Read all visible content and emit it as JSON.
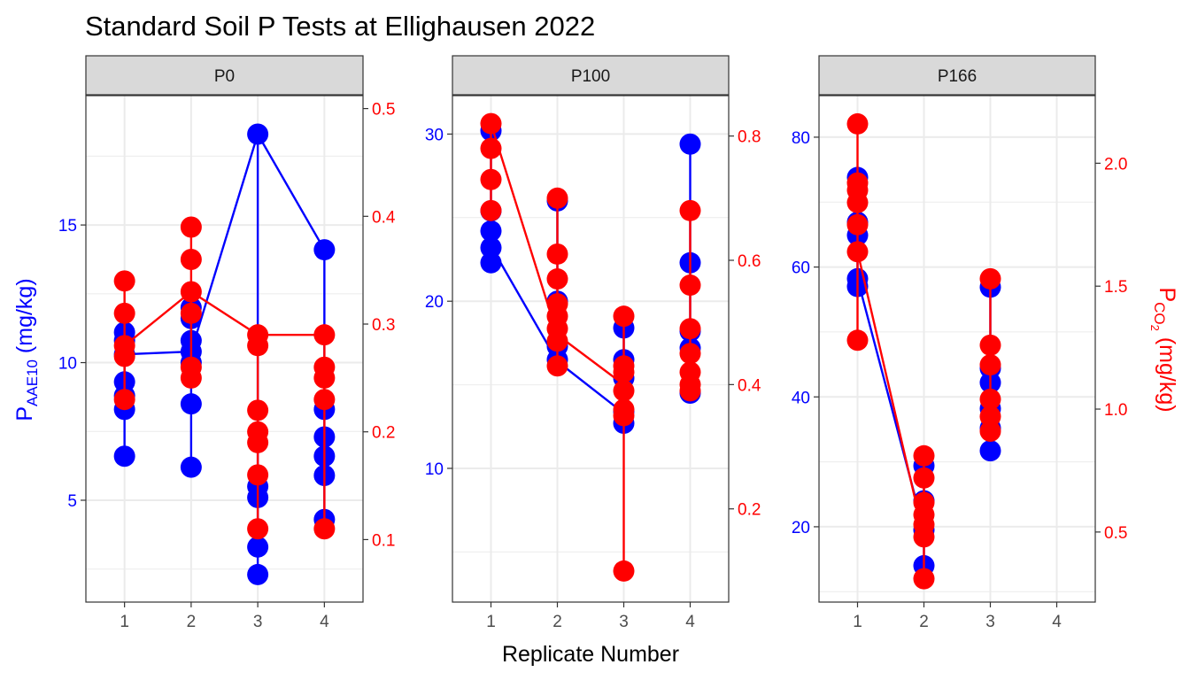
{
  "chart_data": {
    "type": "line",
    "title": "Standard Soil P Tests at Ellighausen 2022",
    "xlabel": "Replicate Number",
    "ylabel_left": {
      "main": "P",
      "sub": "AAE10",
      "unit": " (mg/kg)"
    },
    "ylabel_right": {
      "main": "P",
      "sub": "CO",
      "subsub": "2",
      "unit": " (mg/kg)"
    },
    "colors": {
      "aae10": "#0000ff",
      "co2": "#ff0000",
      "strip_bg": "#d9d9d9",
      "grid": "#ebebeb"
    },
    "grid": true,
    "x_ticks": [
      "1",
      "2",
      "3",
      "4"
    ],
    "panels": [
      {
        "label": "P0",
        "left_axis": {
          "range": [
            1.3,
            19.7
          ],
          "ticks": [
            "5",
            "10",
            "15"
          ],
          "tick_values": [
            5,
            10,
            15
          ]
        },
        "right_axis": {
          "range": [
            0.042,
            0.512
          ],
          "ticks": [
            "0.1",
            "0.2",
            "0.3",
            "0.4",
            "0.5"
          ],
          "tick_values": [
            0.1,
            0.2,
            0.3,
            0.4,
            0.5
          ]
        },
        "aae10": {
          "points": [
            [
              1,
              6.6
            ],
            [
              1,
              8.3
            ],
            [
              1,
              8.8
            ],
            [
              1,
              9.3
            ],
            [
              1,
              10.3
            ],
            [
              1,
              10.8
            ],
            [
              1,
              11.1
            ],
            [
              2,
              6.2
            ],
            [
              2,
              8.5
            ],
            [
              2,
              10.0
            ],
            [
              2,
              10.4
            ],
            [
              2,
              10.8
            ],
            [
              2,
              11.6
            ],
            [
              2,
              12.0
            ],
            [
              3,
              2.3
            ],
            [
              3,
              3.3
            ],
            [
              3,
              5.1
            ],
            [
              3,
              5.5
            ],
            [
              3,
              18.3
            ],
            [
              4,
              4.3
            ],
            [
              4,
              5.9
            ],
            [
              4,
              6.6
            ],
            [
              4,
              7.3
            ],
            [
              4,
              8.3
            ],
            [
              4,
              14.1
            ]
          ],
          "means": [
            [
              1,
              10.3
            ],
            [
              2,
              10.4
            ],
            [
              3,
              18.3
            ],
            [
              4,
              14.1
            ]
          ]
        },
        "co2": {
          "points": [
            [
              1,
              0.23
            ],
            [
              1,
              0.27
            ],
            [
              1,
              0.28
            ],
            [
              1,
              0.31
            ],
            [
              1,
              0.34
            ],
            [
              2,
              0.25
            ],
            [
              2,
              0.26
            ],
            [
              2,
              0.31
            ],
            [
              2,
              0.33
            ],
            [
              2,
              0.36
            ],
            [
              2,
              0.39
            ],
            [
              3,
              0.11
            ],
            [
              3,
              0.16
            ],
            [
              3,
              0.19
            ],
            [
              3,
              0.2
            ],
            [
              3,
              0.22
            ],
            [
              3,
              0.28
            ],
            [
              3,
              0.29
            ],
            [
              4,
              0.11
            ],
            [
              4,
              0.23
            ],
            [
              4,
              0.25
            ],
            [
              4,
              0.26
            ],
            [
              4,
              0.29
            ]
          ],
          "means": [
            [
              1,
              0.28
            ],
            [
              2,
              0.33
            ],
            [
              3,
              0.29
            ],
            [
              4,
              0.29
            ]
          ]
        }
      },
      {
        "label": "P100",
        "left_axis": {
          "range": [
            2.0,
            32.3
          ],
          "ticks": [
            "10",
            "20",
            "30"
          ],
          "tick_values": [
            10,
            20,
            30
          ]
        },
        "right_axis": {
          "range": [
            0.05,
            0.865
          ],
          "ticks": [
            "0.2",
            "0.4",
            "0.6",
            "0.8"
          ],
          "tick_values": [
            0.2,
            0.4,
            0.6,
            0.8
          ]
        },
        "aae10": {
          "points": [
            [
              1,
              22.3
            ],
            [
              1,
              23.2
            ],
            [
              1,
              24.2
            ],
            [
              1,
              25.4
            ],
            [
              1,
              30.2
            ],
            [
              2,
              16.5
            ],
            [
              2,
              17.3
            ],
            [
              2,
              20.0
            ],
            [
              2,
              26.0
            ],
            [
              3,
              12.7
            ],
            [
              3,
              13.4
            ],
            [
              3,
              15.4
            ],
            [
              3,
              16.5
            ],
            [
              3,
              18.4
            ],
            [
              4,
              14.5
            ],
            [
              4,
              17.2
            ],
            [
              4,
              18.2
            ],
            [
              4,
              22.3
            ],
            [
              4,
              29.4
            ]
          ],
          "means": [
            [
              1,
              23.3
            ],
            [
              2,
              16.4
            ],
            [
              3,
              13.3
            ]
          ]
        },
        "co2": {
          "points": [
            [
              1,
              0.68
            ],
            [
              1,
              0.73
            ],
            [
              1,
              0.78
            ],
            [
              1,
              0.82
            ],
            [
              2,
              0.43
            ],
            [
              2,
              0.47
            ],
            [
              2,
              0.49
            ],
            [
              2,
              0.51
            ],
            [
              2,
              0.53
            ],
            [
              2,
              0.57
            ],
            [
              2,
              0.61
            ],
            [
              2,
              0.7
            ],
            [
              3,
              0.1
            ],
            [
              3,
              0.35
            ],
            [
              3,
              0.36
            ],
            [
              3,
              0.39
            ],
            [
              3,
              0.42
            ],
            [
              3,
              0.43
            ],
            [
              3,
              0.51
            ],
            [
              4,
              0.39
            ],
            [
              4,
              0.4
            ],
            [
              4,
              0.42
            ],
            [
              4,
              0.45
            ],
            [
              4,
              0.49
            ],
            [
              4,
              0.56
            ],
            [
              4,
              0.68
            ]
          ],
          "means": [
            [
              1,
              0.82
            ],
            [
              2,
              0.48
            ],
            [
              3,
              0.4
            ]
          ]
        }
      },
      {
        "label": "P166",
        "left_axis": {
          "range": [
            8.4,
            86.4
          ],
          "ticks": [
            "20",
            "40",
            "60",
            "80"
          ],
          "tick_values": [
            20,
            40,
            60,
            80
          ]
        },
        "right_axis": {
          "range": [
            0.215,
            2.275
          ],
          "ticks": [
            "0.5",
            "1.0",
            "1.5",
            "2.0"
          ],
          "tick_values": [
            0.5,
            1.0,
            1.5,
            2.0
          ]
        },
        "aae10": {
          "points": [
            [
              1,
              57.0
            ],
            [
              1,
              58.2
            ],
            [
              1,
              64.9
            ],
            [
              1,
              66.9
            ],
            [
              1,
              73.8
            ],
            [
              2,
              14.0
            ],
            [
              2,
              19.5
            ],
            [
              2,
              24.0
            ],
            [
              2,
              29.4
            ],
            [
              3,
              31.7
            ],
            [
              3,
              35.2
            ],
            [
              3,
              38.2
            ],
            [
              3,
              42.2
            ],
            [
              3,
              44.4
            ],
            [
              3,
              56.9
            ]
          ],
          "means": [
            [
              1,
              58.2
            ],
            [
              2,
              19.5
            ]
          ]
        },
        "co2": {
          "points": [
            [
              1,
              1.28
            ],
            [
              1,
              1.64
            ],
            [
              1,
              1.75
            ],
            [
              1,
              1.84
            ],
            [
              1,
              1.89
            ],
            [
              1,
              1.92
            ],
            [
              1,
              2.16
            ],
            [
              2,
              0.31
            ],
            [
              2,
              0.48
            ],
            [
              2,
              0.53
            ],
            [
              2,
              0.57
            ],
            [
              2,
              0.62
            ],
            [
              2,
              0.72
            ],
            [
              2,
              0.81
            ],
            [
              3,
              0.91
            ],
            [
              3,
              0.97
            ],
            [
              3,
              1.04
            ],
            [
              3,
              1.18
            ],
            [
              3,
              1.26
            ],
            [
              3,
              1.53
            ]
          ],
          "means": [
            [
              1,
              1.64
            ],
            [
              2,
              0.48
            ]
          ]
        }
      }
    ]
  }
}
